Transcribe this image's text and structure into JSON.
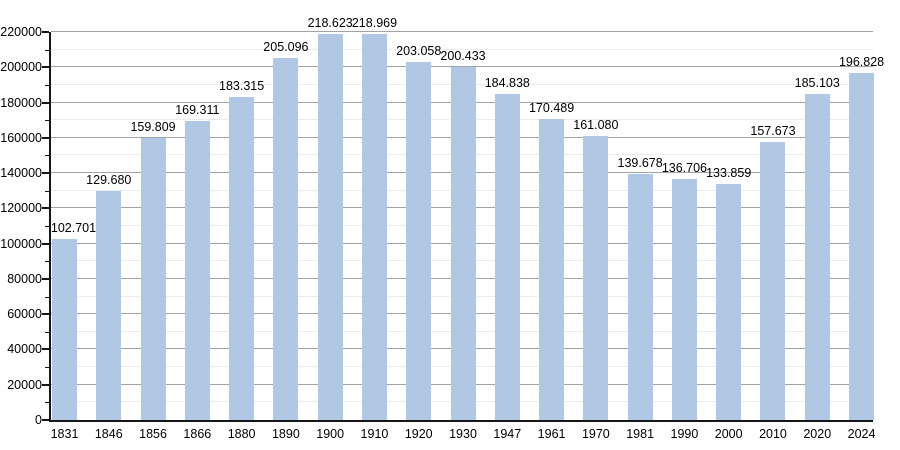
{
  "chart_data": {
    "type": "bar",
    "title": "",
    "xlabel": "",
    "ylabel": "",
    "categories": [
      "1831",
      "1846",
      "1856",
      "1866",
      "1880",
      "1890",
      "1900",
      "1910",
      "1920",
      "1930",
      "1947",
      "1961",
      "1970",
      "1981",
      "1990",
      "2000",
      "2010",
      "2020",
      "2024"
    ],
    "values": [
      102701,
      129680,
      159809,
      169311,
      183315,
      205096,
      218623,
      218969,
      203058,
      200433,
      184838,
      170489,
      161080,
      139678,
      136706,
      133859,
      157673,
      185103,
      196828
    ],
    "value_labels": [
      "102.701",
      "129.680",
      "159.809",
      "169.311",
      "183.315",
      "205.096",
      "218.623",
      "218.969",
      "203.058",
      "200.433",
      "184.838",
      "170.489",
      "161.080",
      "139.678",
      "136.706",
      "133.859",
      "157.673",
      "185.103",
      "196.828"
    ],
    "ylim": [
      0,
      220000
    ],
    "y_major_step": 20000,
    "y_minor_step": 10000,
    "y_tick_labels": [
      "220000",
      "200000",
      "180000",
      "160000",
      "140000",
      "120000",
      "100000",
      "80000",
      "60000",
      "40000",
      "20000",
      "0"
    ],
    "grid": "horizontal major and minor gridlines",
    "legend": "none",
    "colors": {
      "bar_fill": "#b1c8e4",
      "major_gridline": "#a3a3a3",
      "minor_gridline": "#ececec",
      "axis": "#161616",
      "label_text": "#000000"
    }
  }
}
